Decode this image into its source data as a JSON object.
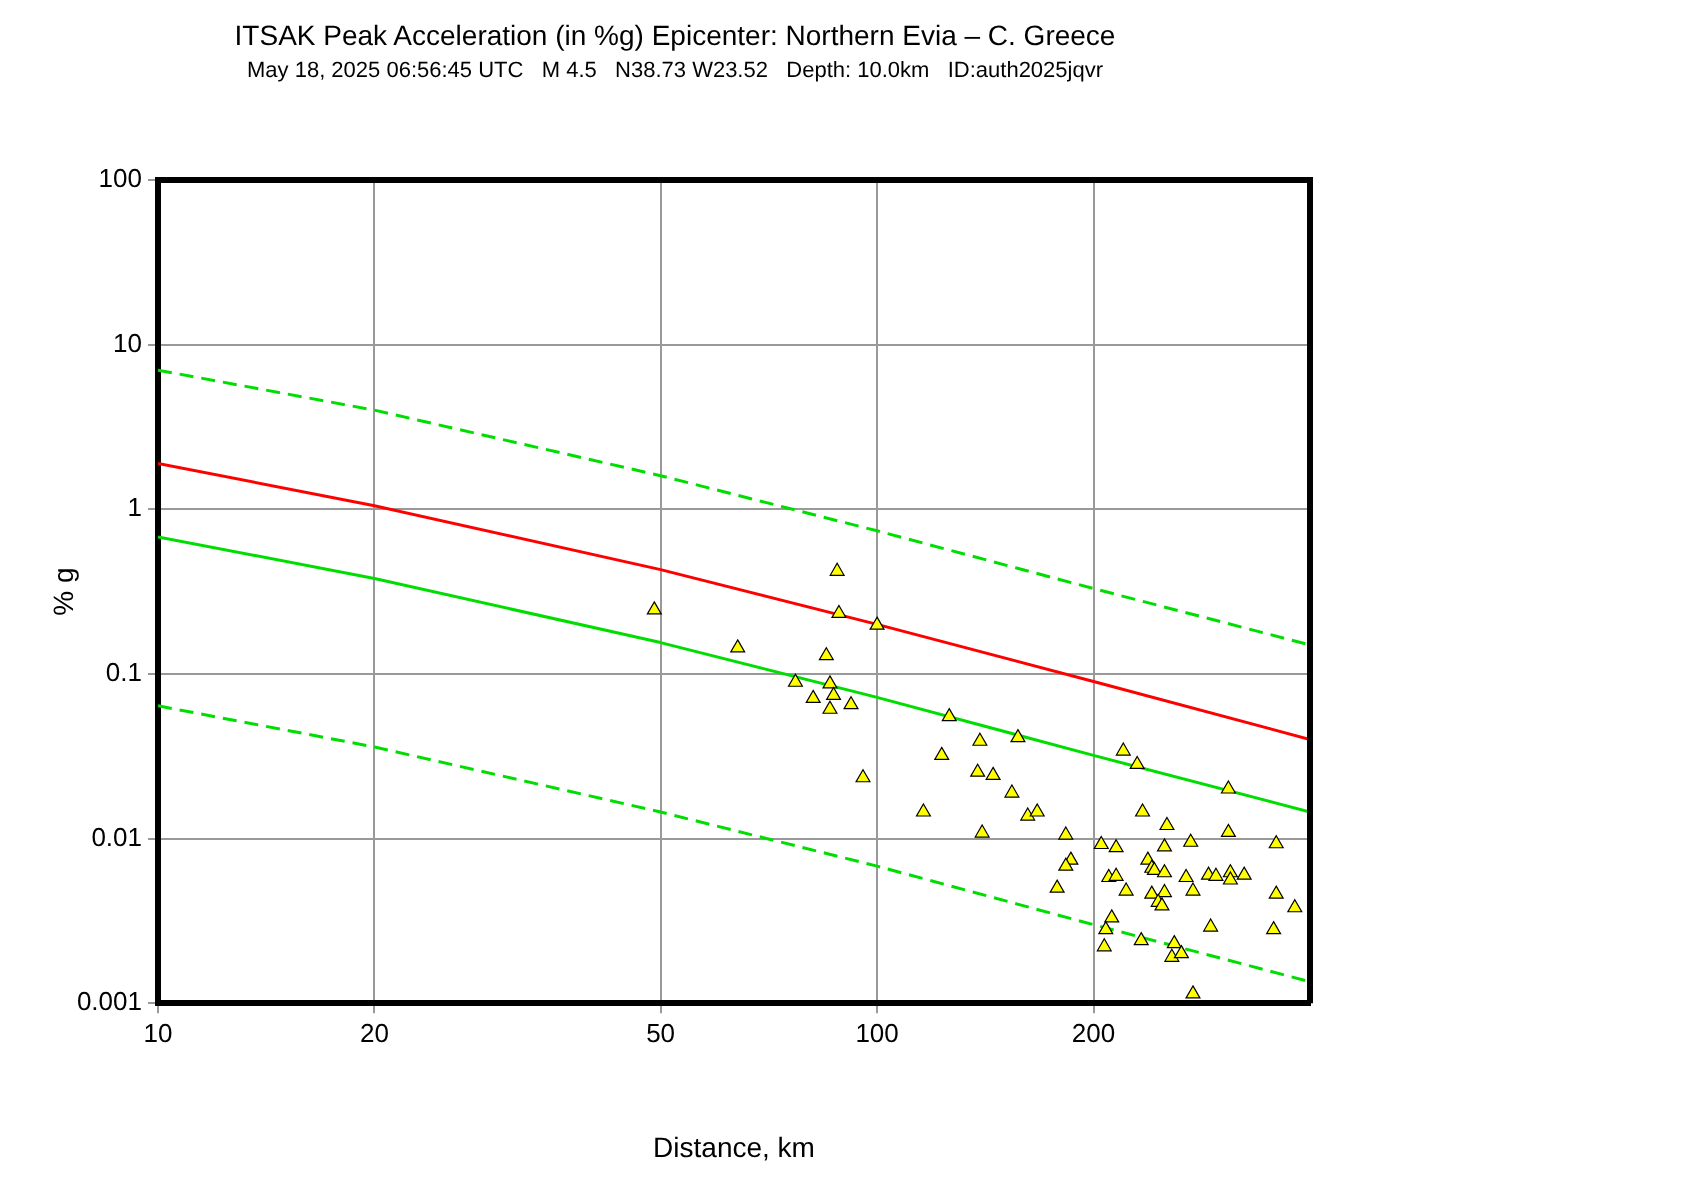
{
  "chart_data": {
    "type": "scatter",
    "title": "ITSAK Peak Acceleration (in %g) Epicenter: Northern Evia – C. Greece",
    "subtitle": "May 18, 2025 06:56:45 UTC   M 4.5   N38.73 W23.52   Depth: 10.0km   ID:auth2025jqvr",
    "xlabel": "Distance, km",
    "ylabel": "% g",
    "log": "xy",
    "grid": true,
    "legend": false,
    "xlim": [
      10,
      400
    ],
    "ylim": [
      0.001,
      100
    ],
    "xticks": [
      10,
      20,
      50,
      100,
      200
    ],
    "yticks": [
      0.001,
      0.01,
      0.1,
      1,
      10,
      100
    ],
    "series": [
      {
        "type": "line",
        "color": "#00dd00",
        "line_style": "dashed",
        "marker": "none",
        "x": [
          10,
          20,
          50,
          100,
          200,
          400
        ],
        "values": [
          7,
          4,
          1.6,
          0.74,
          0.33,
          0.15
        ]
      },
      {
        "type": "line",
        "color": "#ff0000",
        "line_style": "solid",
        "marker": "none",
        "x": [
          10,
          20,
          50,
          100,
          200,
          400
        ],
        "values": [
          1.9,
          1.05,
          0.43,
          0.2,
          0.09,
          0.04
        ]
      },
      {
        "type": "line",
        "color": "#00dd00",
        "line_style": "solid",
        "marker": "none",
        "x": [
          10,
          20,
          50,
          100,
          200,
          400
        ],
        "values": [
          0.68,
          0.38,
          0.155,
          0.072,
          0.032,
          0.0145
        ]
      },
      {
        "type": "line",
        "color": "#00dd00",
        "line_style": "dashed",
        "marker": "none",
        "x": [
          10,
          20,
          50,
          100,
          200,
          400
        ],
        "values": [
          0.064,
          0.036,
          0.0145,
          0.0068,
          0.003,
          0.00135
        ]
      },
      {
        "color": "#ffff00",
        "marker": "triangle",
        "x": [
          49,
          64,
          88,
          88.5,
          100,
          85,
          77,
          86,
          87,
          81.5,
          86,
          92,
          95.6,
          126,
          123,
          139,
          157,
          138,
          145,
          116,
          140,
          154,
          162,
          167,
          183,
          220,
          230,
          308,
          234,
          253,
          308,
          205,
          215,
          251,
          273,
          359,
          186,
          183,
          238,
          241,
          243,
          251,
          269,
          289,
          296,
          310,
          310,
          324,
          210,
          215,
          222,
          241,
          251,
          246,
          249,
          275,
          359,
          381,
          178,
          212,
          208,
          207,
          233,
          259,
          257,
          265,
          291,
          356,
          275
        ],
        "values": [
          0.245,
          0.144,
          0.42,
          0.233,
          0.198,
          0.129,
          0.089,
          0.087,
          0.074,
          0.071,
          0.061,
          0.065,
          0.0234,
          0.055,
          0.032,
          0.039,
          0.041,
          0.0253,
          0.0242,
          0.0145,
          0.0108,
          0.0189,
          0.0137,
          0.0145,
          0.0105,
          0.034,
          0.0282,
          0.02,
          0.0145,
          0.012,
          0.0109,
          0.0092,
          0.0088,
          0.0089,
          0.0095,
          0.0093,
          0.0074,
          0.0068,
          0.0074,
          0.0066,
          0.0064,
          0.0062,
          0.0058,
          0.006,
          0.0059,
          0.0062,
          0.0056,
          0.006,
          0.0058,
          0.0059,
          0.0048,
          0.0046,
          0.0047,
          0.0041,
          0.0039,
          0.0048,
          0.0046,
          0.0038,
          0.005,
          0.0033,
          0.0028,
          0.0022,
          0.0024,
          0.0023,
          0.0019,
          0.002,
          0.0029,
          0.0028,
          0.00114
        ]
      }
    ]
  }
}
